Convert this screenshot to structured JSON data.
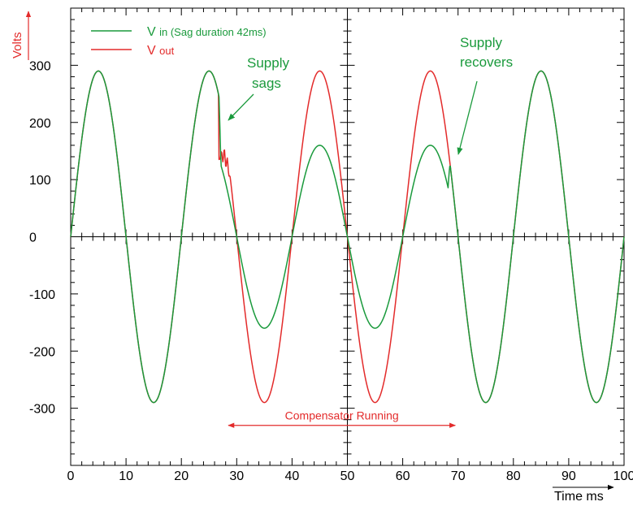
{
  "chart_data": {
    "type": "line",
    "ylabel": "Volts",
    "xlabel": "Time ms",
    "xlim": [
      0,
      100
    ],
    "ylim": [
      -400,
      400
    ],
    "x_ticks": [
      0,
      10,
      20,
      30,
      40,
      50,
      60,
      70,
      80,
      90,
      100
    ],
    "y_ticks": [
      300,
      200,
      100,
      0,
      -100,
      -200,
      -300
    ],
    "frequency_hz": 50,
    "nominal_peak_v": 290,
    "sag_start_ms": 26.8,
    "sag_end_ms": 68.2,
    "sag_peak_v": 160,
    "colors": {
      "vin": "#1a9a3c",
      "vout": "#e32b2b"
    },
    "series": [
      {
        "id": "vin",
        "name": "V in (Sag duration 42ms)",
        "name_main": "V",
        "name_sub": "in (Sag duration 42ms)",
        "color": "#1a9a3c"
      },
      {
        "id": "vout",
        "name": "V out",
        "name_main": "V",
        "name_sub": "out",
        "color": "#e32b2b"
      }
    ],
    "annotations": {
      "sags": [
        "Supply",
        "sags"
      ],
      "recovers": [
        "Supply",
        "recovers"
      ],
      "compensator": "Compensator Running",
      "compensator_range_ms": [
        28.5,
        69.5
      ],
      "compensator_level_v": -330
    }
  }
}
